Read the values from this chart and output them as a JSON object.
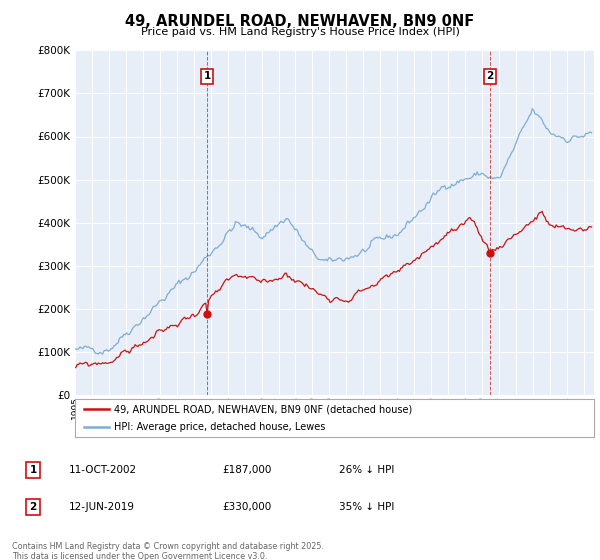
{
  "title": "49, ARUNDEL ROAD, NEWHAVEN, BN9 0NF",
  "subtitle": "Price paid vs. HM Land Registry's House Price Index (HPI)",
  "background_color": "#ffffff",
  "plot_bg_color": "#e8eef8",
  "grid_color": "#ffffff",
  "hpi_color": "#7dadd4",
  "price_color": "#cc1111",
  "vline_color": "#cc1111",
  "ylim": [
    0,
    800000
  ],
  "yticks": [
    0,
    100000,
    200000,
    300000,
    400000,
    500000,
    600000,
    700000,
    800000
  ],
  "legend_house_label": "49, ARUNDEL ROAD, NEWHAVEN, BN9 0NF (detached house)",
  "legend_hpi_label": "HPI: Average price, detached house, Lewes",
  "footer": "Contains HM Land Registry data © Crown copyright and database right 2025.\nThis data is licensed under the Open Government Licence v3.0."
}
